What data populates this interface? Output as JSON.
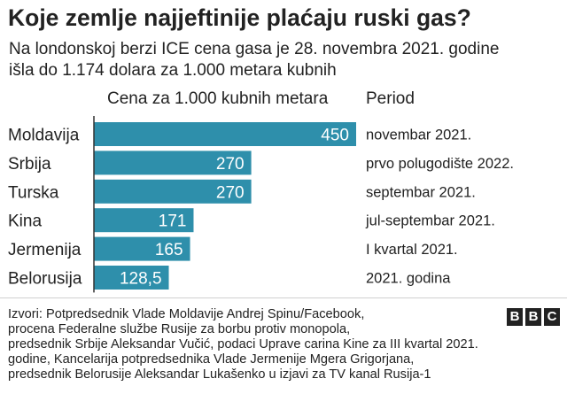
{
  "title": "Koje zemlje najjeftinije plaćaju ruski gas?",
  "subtitle_lines": [
    "Na londonskoj berzi ICE cena gasa je 28. novembra 2021. godine",
    "išla do 1.174 dolara za 1.000 metara kubnih"
  ],
  "colors": {
    "bar": "#2e8fab",
    "bar_label": "#ffffff",
    "text": "#222222"
  },
  "chart_data": {
    "type": "bar",
    "orientation": "horizontal",
    "value_header": "Cena za 1.000 kubnih metara",
    "period_header": "Period",
    "categories": [
      "Moldavija",
      "Srbija",
      "Turska",
      "Kina",
      "Jermenija",
      "Belorusija"
    ],
    "values": [
      450,
      270,
      270,
      171,
      165,
      128.5
    ],
    "value_labels": [
      "450",
      "270",
      "270",
      "171",
      "165",
      "128,5"
    ],
    "periods": [
      "novembar 2021.",
      "prvo polugodište 2022.",
      "septembar 2021.",
      "jul-septembar 2021.",
      "I kvartal 2021.",
      "2021. godina"
    ],
    "xlim": [
      0,
      450
    ],
    "grid": false,
    "legend": "none"
  },
  "sources_lines": [
    "Izvori: Potpredsednik Vlade Moldavije Andrej Spinu/Facebook,",
    "procena Federalne službe Rusije za borbu protiv monopola,",
    "predsednik Srbije Aleksandar Vučić, podaci Uprave carina Kine za III kvartal 2021.",
    "godine, Kancelarija potpredsednika Vlade Jermenije Mgera Grigorjana,",
    "predsednik Belorusije Aleksandar Lukašenko u izjavi za TV kanal Rusija-1"
  ],
  "logo": {
    "letters": [
      "B",
      "B",
      "C"
    ]
  }
}
